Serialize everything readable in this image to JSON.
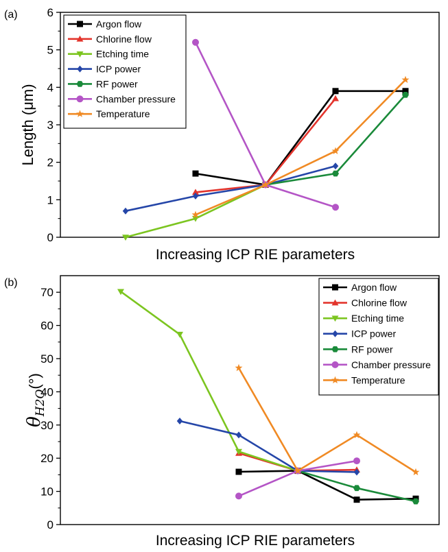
{
  "colors": {
    "Argon flow": "#000000",
    "Chlorine flow": "#e3342c",
    "Etching time": "#7cc520",
    "ICP power": "#2546a8",
    "RF power": "#1a8a3a",
    "Chamber pressure": "#b455c6",
    "Temperature": "#f08a24"
  },
  "chart_data": [
    {
      "type": "line",
      "panel_label": "(a)",
      "xlabel": "Increasing ICP RIE parameters",
      "ylabel": "Length (μm)",
      "ylim": [
        0,
        6
      ],
      "yticks": [
        0,
        1,
        2,
        3,
        4,
        5,
        6
      ],
      "xlim": [
        0,
        6
      ],
      "legend_position": "top-left",
      "series": [
        {
          "name": "Argon flow",
          "marker": "square",
          "x": [
            2,
            3,
            4,
            5
          ],
          "y": [
            1.7,
            1.4,
            3.9,
            3.9
          ]
        },
        {
          "name": "Chlorine flow",
          "marker": "triangle-up",
          "x": [
            2,
            3,
            4
          ],
          "y": [
            1.2,
            1.4,
            3.7
          ]
        },
        {
          "name": "Etching time",
          "marker": "triangle-down",
          "x": [
            1,
            2,
            3
          ],
          "y": [
            0.0,
            0.5,
            1.4
          ]
        },
        {
          "name": "ICP power",
          "marker": "diamond",
          "x": [
            1,
            2,
            3,
            4
          ],
          "y": [
            0.7,
            1.1,
            1.4,
            1.9
          ]
        },
        {
          "name": "RF power",
          "marker": "hexagon",
          "x": [
            3,
            4,
            5
          ],
          "y": [
            1.4,
            1.7,
            3.8
          ]
        },
        {
          "name": "Chamber pressure",
          "marker": "circle",
          "x": [
            2,
            3,
            4
          ],
          "y": [
            5.2,
            1.4,
            0.8
          ]
        },
        {
          "name": "Temperature",
          "marker": "star",
          "x": [
            2,
            3,
            4,
            5
          ],
          "y": [
            0.6,
            1.4,
            2.3,
            4.2
          ]
        }
      ]
    },
    {
      "type": "line",
      "panel_label": "(b)",
      "xlabel": "Increasing ICP RIE parameters",
      "ylabel_symbol": "θ",
      "ylabel_subscript": "H2O",
      "ylabel_unit": "(°)",
      "ylim": [
        0,
        75
      ],
      "yticks": [
        0,
        10,
        20,
        30,
        40,
        50,
        60,
        70
      ],
      "xlim": [
        0,
        6
      ],
      "legend_position": "top-right",
      "series": [
        {
          "name": "Argon flow",
          "marker": "square",
          "x": [
            2,
            3,
            4,
            5
          ],
          "y": [
            15.9,
            16.2,
            7.5,
            7.8
          ]
        },
        {
          "name": "Chlorine flow",
          "marker": "triangle-up",
          "x": [
            2,
            3,
            4
          ],
          "y": [
            21.5,
            16.2,
            16.5
          ]
        },
        {
          "name": "Etching time",
          "marker": "triangle-down",
          "x": [
            0,
            1,
            2,
            3
          ],
          "y": [
            70.2,
            57.3,
            22.0,
            16.2
          ]
        },
        {
          "name": "ICP power",
          "marker": "diamond",
          "x": [
            1,
            2,
            3,
            4
          ],
          "y": [
            31.2,
            27.0,
            16.2,
            15.8
          ]
        },
        {
          "name": "RF power",
          "marker": "hexagon",
          "x": [
            3,
            4,
            5
          ],
          "y": [
            16.2,
            11.0,
            7.0
          ]
        },
        {
          "name": "Chamber pressure",
          "marker": "circle",
          "x": [
            2,
            3,
            4
          ],
          "y": [
            8.6,
            16.2,
            19.2
          ]
        },
        {
          "name": "Temperature",
          "marker": "star",
          "x": [
            2,
            3,
            4,
            5
          ],
          "y": [
            47.2,
            16.2,
            27.0,
            15.8
          ]
        }
      ]
    }
  ]
}
